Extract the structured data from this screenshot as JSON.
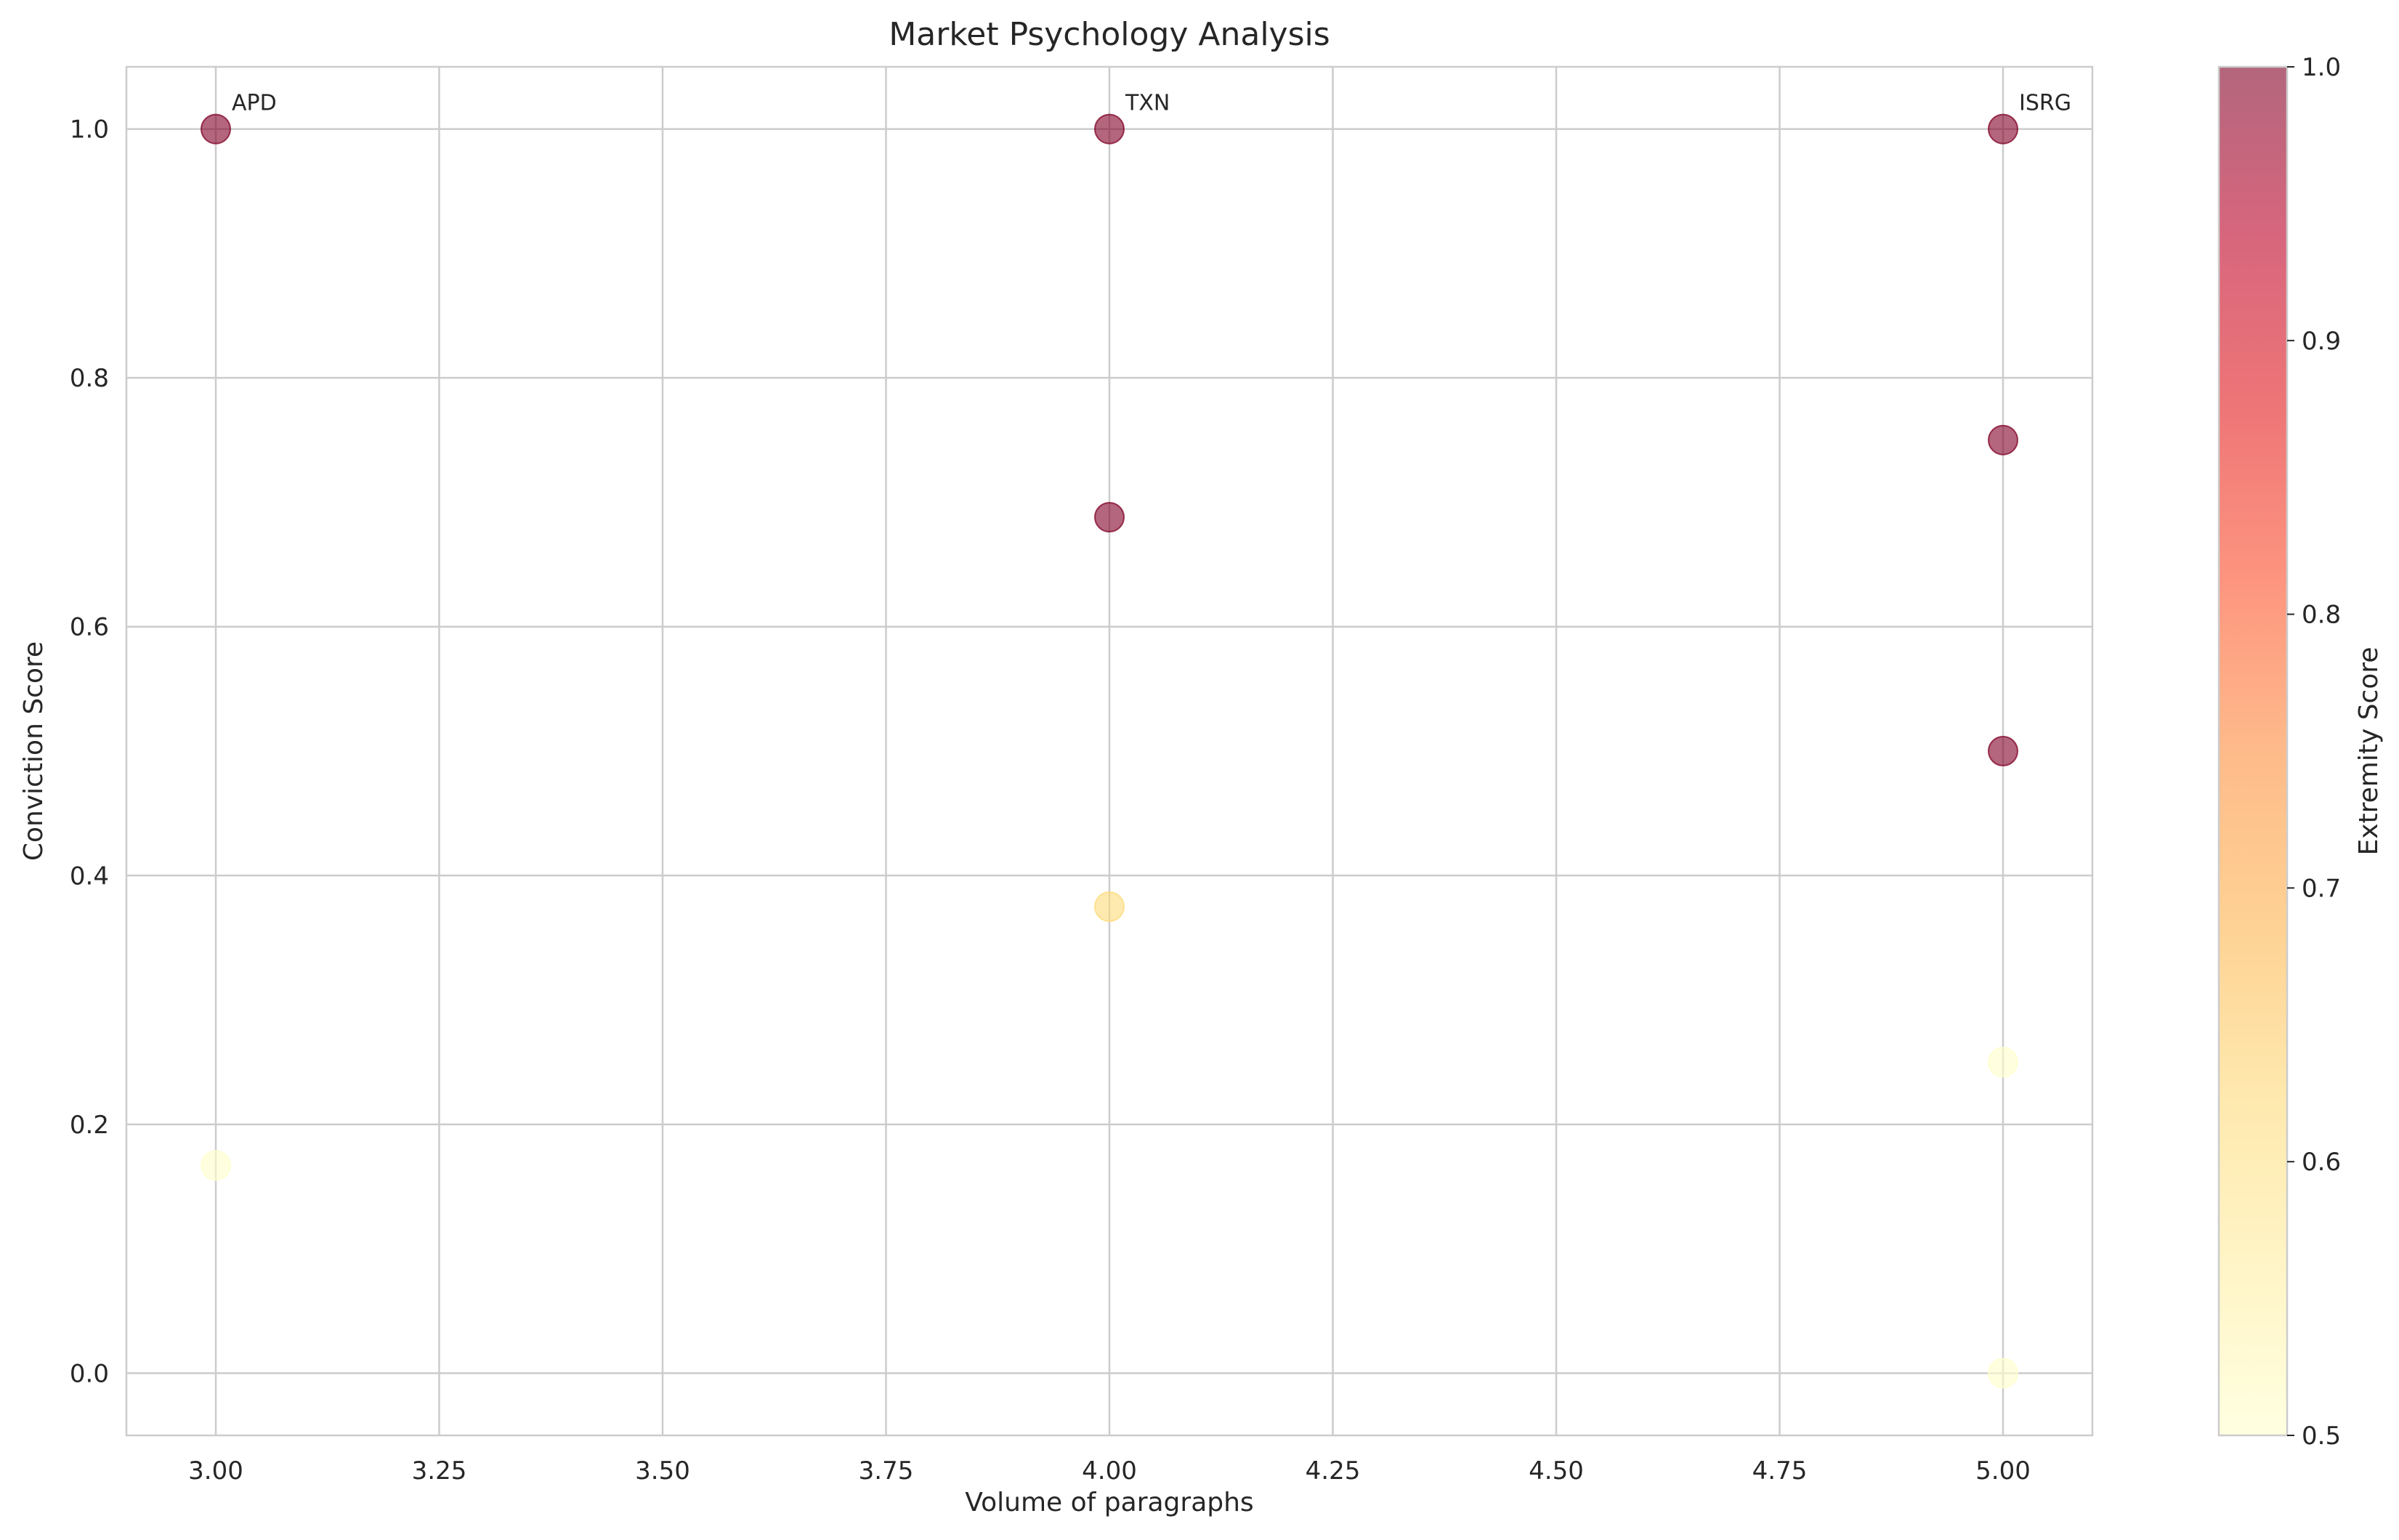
{
  "chart_data": {
    "type": "scatter",
    "title": "Market Psychology Analysis",
    "xlabel": "Volume of paragraphs",
    "ylabel": "Conviction Score",
    "xlim": [
      2.9,
      5.1
    ],
    "ylim": [
      -0.05,
      1.05
    ],
    "xticks": [
      3.0,
      3.25,
      3.5,
      3.75,
      4.0,
      4.25,
      4.5,
      4.75,
      5.0
    ],
    "xtick_labels": [
      "3.00",
      "3.25",
      "3.50",
      "3.75",
      "4.00",
      "4.25",
      "4.50",
      "4.75",
      "5.00"
    ],
    "yticks": [
      0.0,
      0.2,
      0.4,
      0.6,
      0.8,
      1.0
    ],
    "ytick_labels": [
      "0.0",
      "0.2",
      "0.4",
      "0.6",
      "0.8",
      "1.0"
    ],
    "grid": true,
    "colormap": "YlOrRd",
    "colorbar": {
      "label": "Extremity Score",
      "range": [
        0.5,
        1.0
      ],
      "ticks": [
        0.5,
        0.6,
        0.7,
        0.8,
        0.9,
        1.0
      ],
      "tick_labels": [
        "0.5",
        "0.6",
        "0.7",
        "0.8",
        "0.9",
        "1.0"
      ]
    },
    "points": [
      {
        "x": 3.0,
        "y": 1.0,
        "color": 1.0,
        "label": "APD"
      },
      {
        "x": 3.0,
        "y": 0.167,
        "color": 0.5
      },
      {
        "x": 4.0,
        "y": 1.0,
        "color": 1.0,
        "label": "TXN"
      },
      {
        "x": 4.0,
        "y": 0.688,
        "color": 1.0
      },
      {
        "x": 4.0,
        "y": 0.375,
        "color": 0.62
      },
      {
        "x": 5.0,
        "y": 1.0,
        "color": 1.0,
        "label": "ISRG"
      },
      {
        "x": 5.0,
        "y": 0.75,
        "color": 1.0
      },
      {
        "x": 5.0,
        "y": 0.5,
        "color": 1.0
      },
      {
        "x": 5.0,
        "y": 0.25,
        "color": 0.5
      },
      {
        "x": 5.0,
        "y": 0.0,
        "color": 0.5
      }
    ]
  }
}
